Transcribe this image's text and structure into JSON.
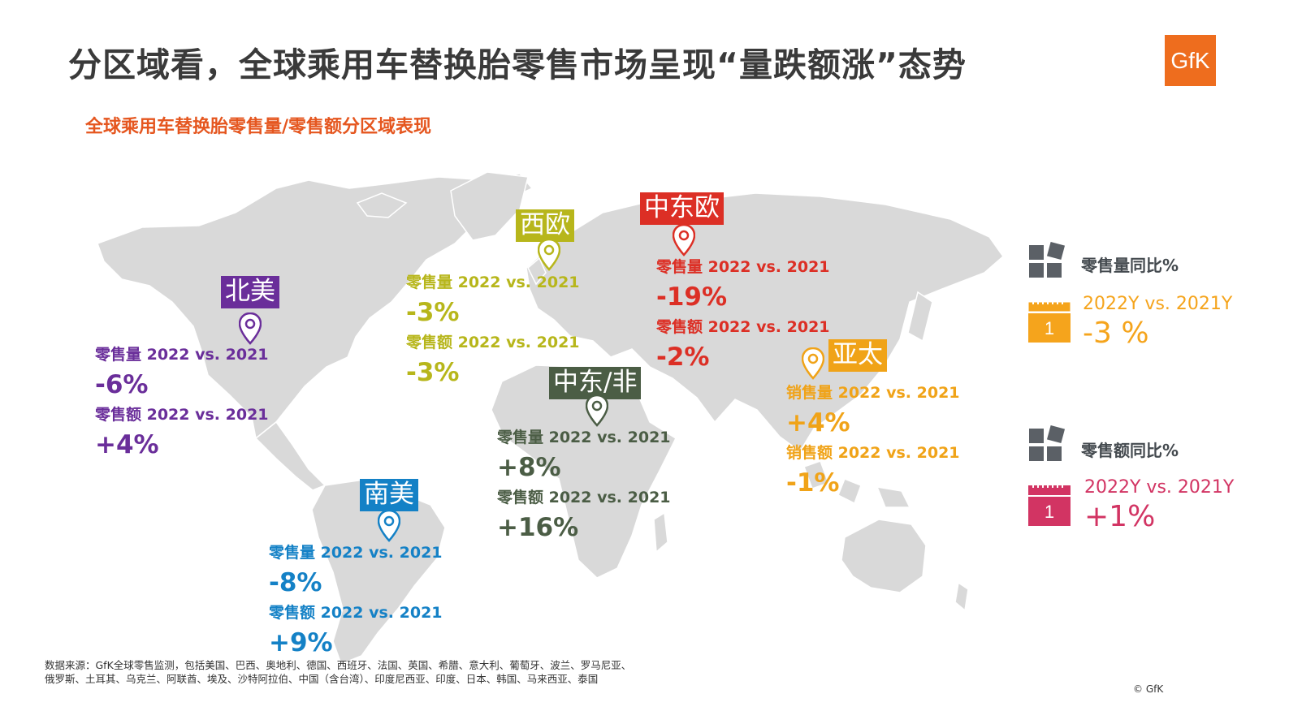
{
  "title": "分区域看，全球乘用车替换胎零售市场呈现“量跌额涨”态势",
  "subtitle": "全球乘用车替换胎零售量/零售额分区域表现",
  "logo_text": "GfK",
  "regions": [
    {
      "name": "北美",
      "color": "#6a2e9a",
      "volume_label": "零售量 2022 vs. 2021",
      "volume_value": "-6%",
      "value_label": "零售额 2022 vs. 2021",
      "value_value": "+4%"
    },
    {
      "name": "西欧",
      "color": "#b7b61b",
      "volume_label": "零售量 2022 vs. 2021",
      "volume_value": "-3%",
      "value_label": "零售额 2022 vs. 2021",
      "value_value": "-3%"
    },
    {
      "name": "中东欧",
      "color": "#dc2f25",
      "volume_label": "零售量 2022 vs. 2021",
      "volume_value": "-19%",
      "value_label": "零售额 2022 vs. 2021",
      "value_value": "-2%"
    },
    {
      "name": "亚太",
      "color": "#f0a318",
      "volume_label": "销售量 2022 vs. 2021",
      "volume_value": "+4%",
      "value_label": "销售额 2022 vs. 2021",
      "value_value": "-1%"
    },
    {
      "name": "中东/非",
      "color": "#4b5d45",
      "volume_label": "零售量 2022 vs. 2021",
      "volume_value": "+8%",
      "value_label": "零售额 2022 vs. 2021",
      "value_value": "+16%"
    },
    {
      "name": "南美",
      "color": "#1481c6",
      "volume_label": "零售量 2022 vs. 2021",
      "volume_value": "-8%",
      "value_label": "零售额 2022 vs. 2021",
      "value_value": "+9%"
    }
  ],
  "legend": {
    "volume": {
      "title": "零售量同比%",
      "calendar_day": "1",
      "period": "2022Y vs. 2021Y",
      "value": "-3 %",
      "color": "#f5a41c"
    },
    "value": {
      "title": "零售额同比%",
      "calendar_day": "1",
      "period": "2022Y vs. 2021Y",
      "value": "+1%",
      "color": "#d23463"
    }
  },
  "source_line1": "数据来源：GfK全球零售监测，包括美国、巴西、奥地利、德国、西班牙、法国、英国、希腊、意大利、葡萄牙、波兰、罗马尼亚、",
  "source_line2": "俄罗斯、土耳其、乌克兰、阿联酋、埃及、沙特阿拉伯、中国（含台湾）、印度尼西亚、印度、日本、韩国、马来西亚、泰国",
  "copyright": "© GfK"
}
